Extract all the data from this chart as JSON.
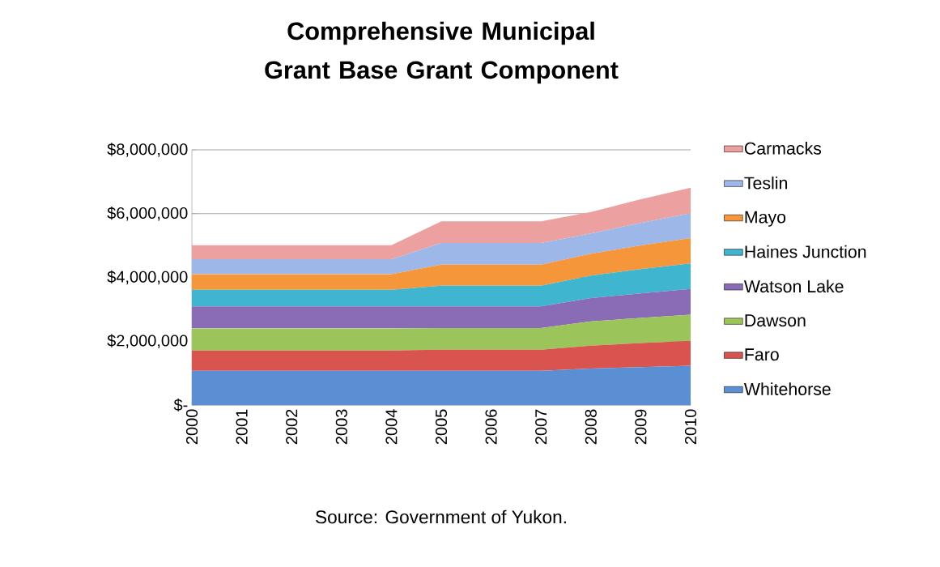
{
  "chart_data": {
    "type": "area",
    "title": "Comprehensive Municipal Grant Base Grant Component",
    "categories": [
      "2000",
      "2001",
      "2002",
      "2003",
      "2004",
      "2005",
      "2006",
      "2007",
      "2008",
      "2009",
      "2010"
    ],
    "stacked": true,
    "series": [
      {
        "name": "Whitehorse",
        "color": "#5b8fd4",
        "values": [
          1070000,
          1070000,
          1070000,
          1070000,
          1070000,
          1070000,
          1070000,
          1070000,
          1140000,
          1190000,
          1230000
        ]
      },
      {
        "name": "Faro",
        "color": "#d9534f",
        "values": [
          640000,
          640000,
          640000,
          640000,
          640000,
          660000,
          660000,
          660000,
          720000,
          750000,
          780000
        ]
      },
      {
        "name": "Dawson",
        "color": "#9bc45a",
        "values": [
          690000,
          690000,
          690000,
          690000,
          690000,
          680000,
          680000,
          680000,
          760000,
          790000,
          820000
        ]
      },
      {
        "name": "Watson Lake",
        "color": "#8a6bb5",
        "values": [
          690000,
          690000,
          690000,
          690000,
          690000,
          680000,
          680000,
          680000,
          730000,
          770000,
          810000
        ]
      },
      {
        "name": "Haines Junction",
        "color": "#3fb5d0",
        "values": [
          520000,
          520000,
          520000,
          520000,
          520000,
          650000,
          650000,
          650000,
          710000,
          760000,
          800000
        ]
      },
      {
        "name": "Mayo",
        "color": "#f5963a",
        "values": [
          490000,
          490000,
          490000,
          490000,
          490000,
          660000,
          660000,
          660000,
          680000,
          740000,
          790000
        ]
      },
      {
        "name": "Teslin",
        "color": "#9db8e8",
        "values": [
          470000,
          470000,
          470000,
          470000,
          470000,
          680000,
          680000,
          680000,
          640000,
          710000,
          780000
        ]
      },
      {
        "name": "Carmacks",
        "color": "#eda0a0",
        "values": [
          440000,
          440000,
          440000,
          440000,
          440000,
          680000,
          680000,
          680000,
          670000,
          740000,
          800000
        ]
      }
    ],
    "ylim": [
      0,
      8000000
    ],
    "yticks": [
      {
        "value": 0,
        "label": "$-"
      },
      {
        "value": 2000000,
        "label": "$2,000,000"
      },
      {
        "value": 4000000,
        "label": "$4,000,000"
      },
      {
        "value": 6000000,
        "label": "$6,000,000"
      },
      {
        "value": 8000000,
        "label": "$8,000,000"
      }
    ],
    "grid": "y",
    "legend": "right",
    "annotations": [
      "Source: Government of Yukon."
    ]
  }
}
